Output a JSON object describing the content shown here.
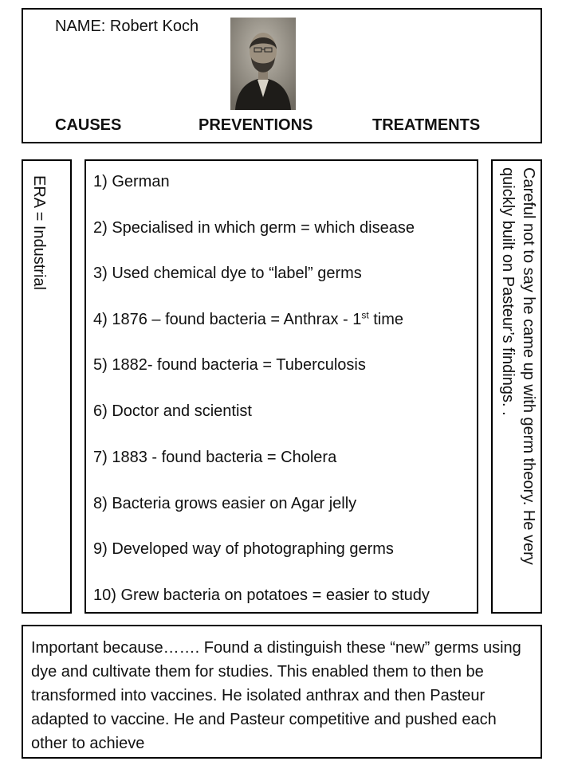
{
  "header": {
    "name": "NAME: Robert Koch",
    "categories": [
      "CAUSES",
      "PREVENTIONS",
      "TREATMENTS"
    ]
  },
  "era": "ERA = Industrial",
  "facts": [
    "1) German",
    "2) Specialised in which germ  =  which disease",
    "3) Used chemical dye to “label” germs",
    {
      "before": "4) 1876 – found bacteria = Anthrax -  1",
      "sup": "st",
      "after": " time"
    },
    "5)  1882- found bacteria = Tuberculosis",
    "6) Doctor and scientist",
    "7) 1883 - found bacteria =  Cholera",
    "8) Bacteria grows easier on Agar jelly",
    "9) Developed way of photographing germs",
    "10) Grew bacteria on potatoes = easier to study"
  ],
  "side_note": "Careful not to say he came up with germ theory. He very quickly built on Pasteur’s findings. .",
  "important": "Important because……. Found a distinguish these “new” germs using dye and cultivate them for studies. This enabled them to then be transformed into vaccines. He isolated anthrax and then Pasteur adapted to vaccine. He and Pasteur competitive and pushed each other to achieve"
}
